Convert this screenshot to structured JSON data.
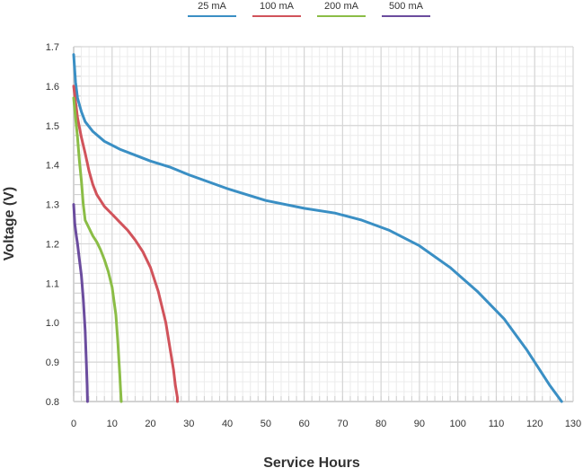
{
  "chart_data": {
    "type": "line",
    "xlabel": "Service Hours",
    "ylabel": "Voltage (V)",
    "xlim": [
      0,
      130
    ],
    "ylim": [
      0.8,
      1.7
    ],
    "x_ticks": [
      0,
      10,
      20,
      30,
      40,
      50,
      60,
      70,
      80,
      90,
      100,
      110,
      120,
      130
    ],
    "y_ticks": [
      0.8,
      0.9,
      1.0,
      1.1,
      1.2,
      1.3,
      1.4,
      1.5,
      1.6,
      1.7
    ],
    "y_tick_labels": [
      "0.8",
      "0.9",
      "1.0",
      "1.1",
      "1.2",
      "1.3",
      "1.4",
      "1.5",
      "1.6",
      "1.7"
    ],
    "grid": true,
    "legend_position": "top",
    "series": [
      {
        "name": "25 mA",
        "color": "#3a8fc4",
        "x": [
          0,
          0.5,
          1,
          2,
          3,
          5,
          8,
          12,
          16,
          20,
          25,
          30,
          40,
          50,
          60,
          68,
          75,
          82,
          90,
          98,
          105,
          112,
          118,
          124,
          127
        ],
        "y": [
          1.68,
          1.61,
          1.57,
          1.535,
          1.51,
          1.485,
          1.46,
          1.44,
          1.425,
          1.41,
          1.395,
          1.375,
          1.34,
          1.31,
          1.29,
          1.278,
          1.26,
          1.235,
          1.195,
          1.14,
          1.08,
          1.01,
          0.93,
          0.84,
          0.8
        ]
      },
      {
        "name": "100 mA",
        "color": "#d1535b",
        "x": [
          0,
          0.5,
          1,
          2,
          3,
          4,
          5,
          6,
          8,
          10,
          12,
          14,
          16,
          18,
          20,
          22,
          24,
          25,
          26,
          26.5,
          27,
          27
        ],
        "y": [
          1.6,
          1.56,
          1.52,
          1.47,
          1.43,
          1.385,
          1.35,
          1.325,
          1.295,
          1.275,
          1.255,
          1.235,
          1.21,
          1.18,
          1.14,
          1.08,
          1.0,
          0.94,
          0.88,
          0.84,
          0.81,
          0.8
        ]
      },
      {
        "name": "200 mA",
        "color": "#8bbd46",
        "x": [
          0,
          0.5,
          1,
          1.5,
          2,
          2.5,
          3,
          4,
          5,
          6,
          7,
          8,
          9,
          10,
          11,
          11.5,
          12,
          12.2,
          12.4
        ],
        "y": [
          1.57,
          1.52,
          1.47,
          1.41,
          1.36,
          1.3,
          1.26,
          1.24,
          1.22,
          1.205,
          1.185,
          1.16,
          1.13,
          1.09,
          1.02,
          0.95,
          0.87,
          0.83,
          0.8
        ]
      },
      {
        "name": "500 mA",
        "color": "#6b4c9e",
        "x": [
          0,
          0.3,
          0.7,
          1,
          1.5,
          2,
          2.5,
          3,
          3.3,
          3.5,
          3.6
        ],
        "y": [
          1.3,
          1.25,
          1.22,
          1.2,
          1.16,
          1.12,
          1.06,
          0.98,
          0.9,
          0.84,
          0.8
        ]
      }
    ]
  }
}
